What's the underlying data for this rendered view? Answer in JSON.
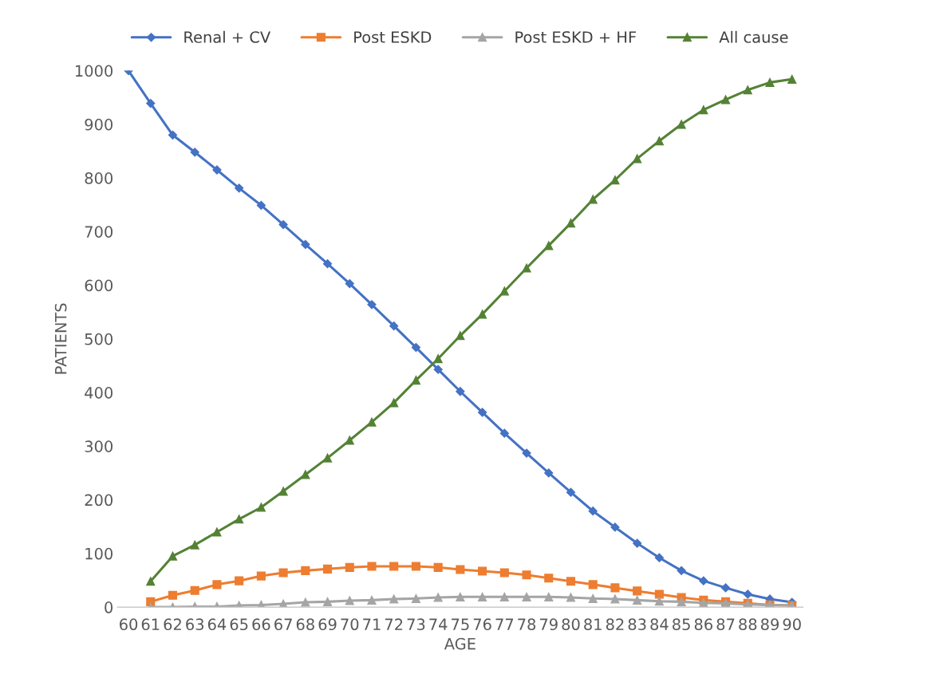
{
  "chart_data": {
    "type": "line",
    "xlabel": "AGE",
    "ylabel": "PATIENTS",
    "categories": [
      "60",
      "61",
      "62",
      "63",
      "64",
      "65",
      "66",
      "67",
      "68",
      "69",
      "70",
      "71",
      "72",
      "73",
      "74",
      "75",
      "76",
      "77",
      "78",
      "79",
      "80",
      "81",
      "82",
      "83",
      "84",
      "85",
      "86",
      "87",
      "88",
      "89",
      "90"
    ],
    "series": [
      {
        "name": "Renal + CV",
        "color": "#4472c4",
        "marker": "diamond",
        "values": [
          1000,
          939,
          880,
          848,
          815,
          781,
          749,
          713,
          676,
          640,
          603,
          564,
          524,
          484,
          443,
          402,
          363,
          324,
          287,
          250,
          214,
          179,
          149,
          119,
          92,
          68,
          49,
          36,
          24,
          15,
          9
        ]
      },
      {
        "name": "Post ESKD",
        "color": "#ed7d31",
        "marker": "square",
        "values": [
          null,
          10,
          22,
          31,
          42,
          49,
          58,
          64,
          68,
          71,
          74,
          76,
          76,
          76,
          74,
          70,
          67,
          64,
          60,
          54,
          48,
          42,
          36,
          30,
          24,
          18,
          13,
          10,
          7,
          4,
          3
        ]
      },
      {
        "name": "Post ESKD + HF",
        "color": "#a5a5a5",
        "marker": "triangle",
        "values": [
          null,
          0,
          0,
          1,
          1,
          3,
          4,
          6,
          9,
          10,
          12,
          13,
          15,
          16,
          18,
          19,
          19,
          19,
          19,
          19,
          18,
          16,
          15,
          13,
          11,
          10,
          8,
          7,
          5,
          4,
          3
        ]
      },
      {
        "name": "All cause",
        "color": "#548235",
        "marker": "triangle",
        "values": [
          null,
          48,
          95,
          116,
          140,
          164,
          186,
          216,
          247,
          278,
          311,
          345,
          381,
          423,
          463,
          506,
          546,
          589,
          632,
          674,
          716,
          760,
          796,
          836,
          869,
          900,
          927,
          946,
          964,
          978,
          984
        ]
      }
    ],
    "ylim": [
      0,
      1000
    ],
    "yticks": [
      0,
      100,
      200,
      300,
      400,
      500,
      600,
      700,
      800,
      900,
      1000
    ],
    "grid": false,
    "legend": "top",
    "line_style": "solid"
  }
}
